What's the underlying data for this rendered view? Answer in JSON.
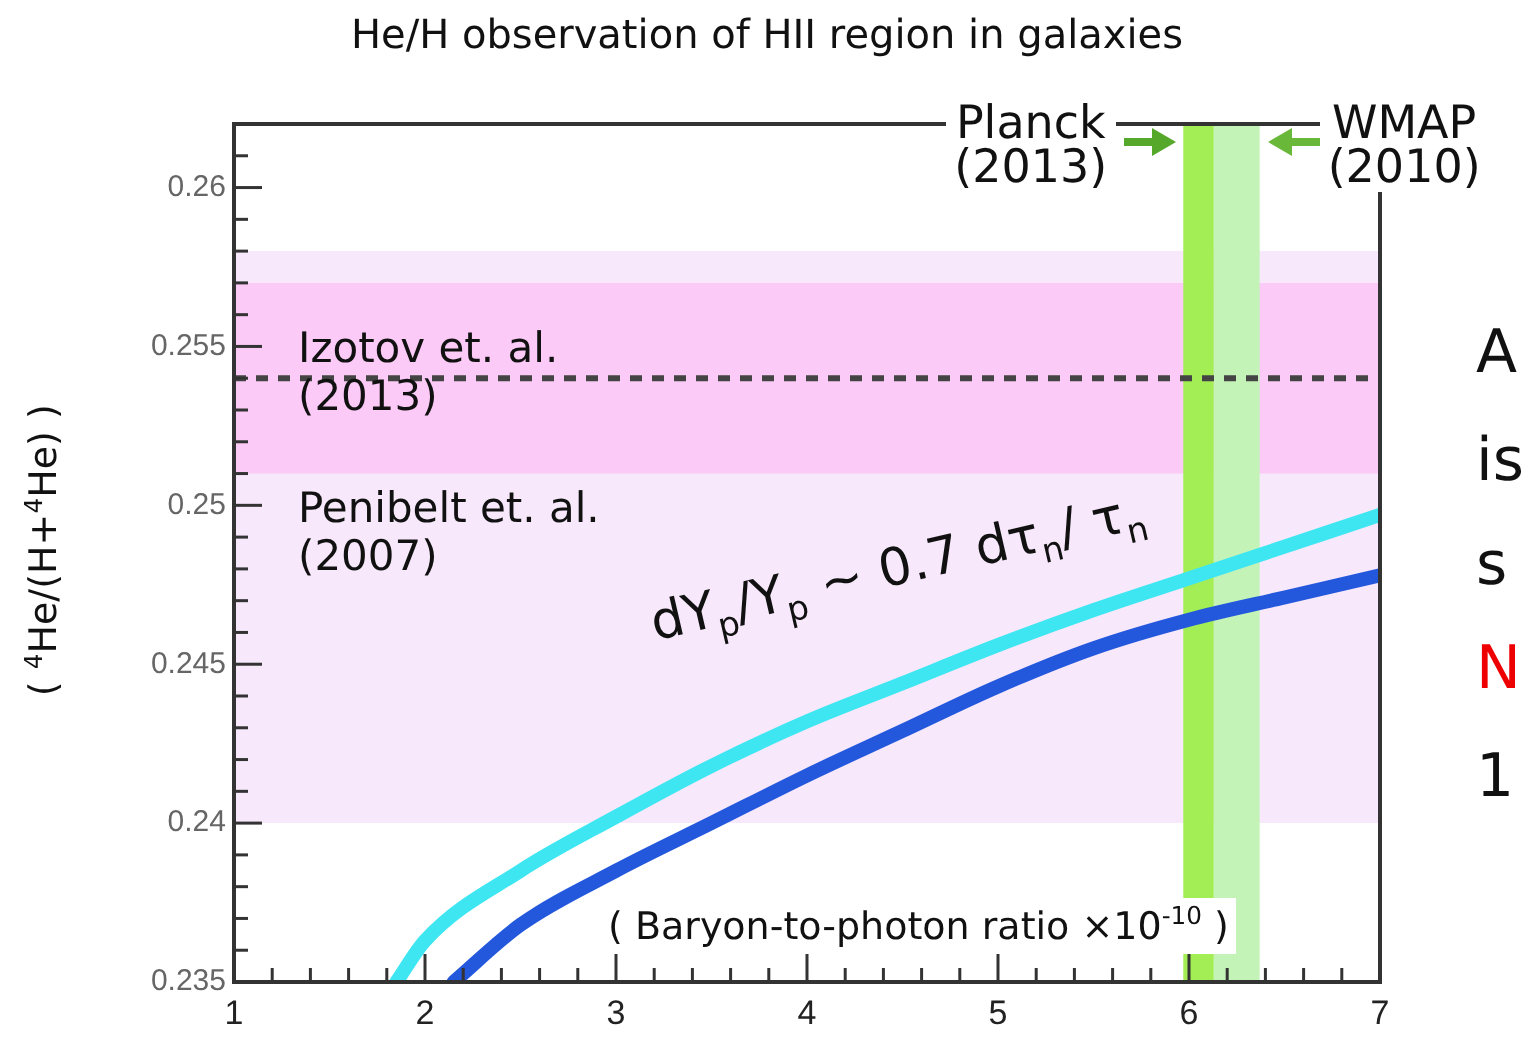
{
  "chart_data": {
    "type": "line",
    "title": "He/H observation of HII region in galaxies",
    "xlabel": "( Baryon-to-photon ratio ×10$^{-10}$ )",
    "ylabel": "( $^{4}$He/(H+$^{4}$He) )",
    "series": [
      {
        "color": "#3ee6f2",
        "x": [
          1.85,
          2,
          2.5,
          3,
          3.5,
          4,
          4.5,
          5,
          5.5,
          6,
          6.5,
          7
        ],
        "values": [
          0.235,
          0.2363,
          0.2385,
          0.2402,
          0.2418,
          0.2432,
          0.2444,
          0.2456,
          0.2467,
          0.2477,
          0.2487,
          0.2497
        ]
      },
      {
        "color": "#2358dd",
        "x": [
          2.15,
          2.5,
          3,
          3.5,
          4,
          4.5,
          5,
          5.5,
          6,
          6.5,
          7
        ],
        "values": [
          0.235,
          0.2368,
          0.2385,
          0.24,
          0.2415,
          0.2429,
          0.2443,
          0.2455,
          0.2464,
          0.2471,
          0.2478
        ]
      }
    ],
    "xlim": [
      1,
      7
    ],
    "ylim": [
      0.235,
      0.262
    ],
    "xticks": [
      1,
      {
        "value": 1.2,
        "label": null
      },
      {
        "value": 1.4,
        "label": null
      },
      {
        "value": 1.6,
        "label": null
      },
      {
        "value": 1.8,
        "label": null
      },
      2,
      {
        "value": 2.2,
        "label": null
      },
      {
        "value": 2.4,
        "label": null
      },
      {
        "value": 2.6,
        "label": null
      },
      {
        "value": 2.8,
        "label": null
      },
      3,
      {
        "value": 3.2,
        "label": null
      },
      {
        "value": 3.4,
        "label": null
      },
      {
        "value": 3.6,
        "label": null
      },
      {
        "value": 3.8,
        "label": null
      },
      4,
      {
        "value": 4.2,
        "label": null
      },
      {
        "value": 4.4,
        "label": null
      },
      {
        "value": 4.6,
        "label": null
      },
      {
        "value": 4.8,
        "label": null
      },
      5,
      {
        "value": 5.2,
        "label": null
      },
      {
        "value": 5.4,
        "label": null
      },
      {
        "value": 5.6,
        "label": null
      },
      {
        "value": 5.8,
        "label": null
      },
      6,
      {
        "value": 6.2,
        "label": null
      },
      {
        "value": 6.4,
        "label": null
      },
      {
        "value": 6.6,
        "label": null
      },
      {
        "value": 6.8,
        "label": null
      },
      7
    ],
    "yticks": [
      0.235,
      {
        "value": 0.236,
        "label": null
      },
      {
        "value": 0.237,
        "label": null
      },
      {
        "value": 0.238,
        "label": null
      },
      {
        "value": 0.239,
        "label": null
      },
      0.24,
      {
        "value": 0.241,
        "label": null
      },
      {
        "value": 0.242,
        "label": null
      },
      {
        "value": 0.243,
        "label": null
      },
      {
        "value": 0.244,
        "label": null
      },
      0.245,
      {
        "value": 0.246,
        "label": null
      },
      {
        "value": 0.247,
        "label": null
      },
      {
        "value": 0.248,
        "label": null
      },
      {
        "value": 0.249,
        "label": null
      },
      0.25,
      {
        "value": 0.251,
        "label": null
      },
      {
        "value": 0.252,
        "label": null
      },
      {
        "value": 0.253,
        "label": null
      },
      {
        "value": 0.254,
        "label": null
      },
      0.255,
      {
        "value": 0.256,
        "label": null
      },
      {
        "value": 0.257,
        "label": null
      },
      {
        "value": 0.258,
        "label": null
      },
      {
        "value": 0.259,
        "label": null
      },
      0.26,
      {
        "value": 0.261,
        "label": null
      }
    ],
    "bands": [
      {
        "axis": "y",
        "from": 0.24,
        "to": 0.258,
        "label": "Penibelt et. al.\n(2007)",
        "color": "#f7e9fb"
      },
      {
        "axis": "y",
        "from": 0.251,
        "to": 0.257,
        "label": "Izotov et. al.\n(2013)",
        "color": "#fccaf7"
      },
      {
        "axis": "x",
        "from": 5.97,
        "to": 6.13,
        "label": "Planck\n(2013)",
        "color": "#a4ee55"
      },
      {
        "axis": "x",
        "from": 6.13,
        "to": 6.37,
        "label": "WMAP\n(2010)",
        "color": "#c4f3b8"
      }
    ],
    "ref_lines": [
      {
        "axis": "y",
        "value": 0.254,
        "line_style": "dashed",
        "color": "#444444"
      }
    ],
    "annotations": [
      "dY$_{p}$/Y$_{p}$ ∼ 0.7 dτ$_{n}$/ τ$_{n}$",
      "A",
      "is",
      "s",
      "N",
      "1"
    ],
    "grid": false,
    "legend": false
  }
}
